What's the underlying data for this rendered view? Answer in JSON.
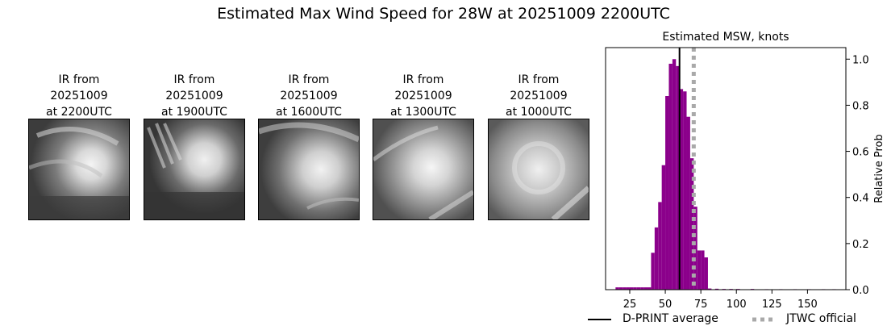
{
  "title": "Estimated Max Wind Speed for 28W at 20251009 2200UTC",
  "ir_panels": [
    {
      "line1": "IR from",
      "line2": "20251009",
      "line3": "at 2200UTC"
    },
    {
      "line1": "IR from",
      "line2": "20251009",
      "line3": "at 1900UTC"
    },
    {
      "line1": "IR from",
      "line2": "20251009",
      "line3": "at 1600UTC"
    },
    {
      "line1": "IR from",
      "line2": "20251009",
      "line3": "at 1300UTC"
    },
    {
      "line1": "IR from",
      "line2": "20251009",
      "line3": "at 1000UTC"
    }
  ],
  "chart_data": {
    "type": "bar",
    "title": "Estimated MSW, knots",
    "xlabel": "",
    "ylabel": "Relative Prob",
    "xlim": [
      8,
      177
    ],
    "ylim": [
      0,
      1.05
    ],
    "xticks": [
      25,
      50,
      75,
      100,
      125,
      150
    ],
    "yticks": [
      0.0,
      0.2,
      0.4,
      0.6,
      0.8,
      1.0
    ],
    "ytick_labels": [
      "0.0",
      "0.2",
      "0.4",
      "0.6",
      "0.8",
      "1.0"
    ],
    "bin_width": 2.5,
    "bar_color": "#8b008b",
    "bins": [
      {
        "x": 15,
        "y": 0.01
      },
      {
        "x": 17.5,
        "y": 0.01
      },
      {
        "x": 20,
        "y": 0.01
      },
      {
        "x": 22.5,
        "y": 0.01
      },
      {
        "x": 25,
        "y": 0.01
      },
      {
        "x": 27.5,
        "y": 0.01
      },
      {
        "x": 30,
        "y": 0.01
      },
      {
        "x": 32.5,
        "y": 0.01
      },
      {
        "x": 35,
        "y": 0.01
      },
      {
        "x": 37.5,
        "y": 0.01
      },
      {
        "x": 40,
        "y": 0.16
      },
      {
        "x": 42.5,
        "y": 0.27
      },
      {
        "x": 45,
        "y": 0.38
      },
      {
        "x": 47.5,
        "y": 0.54
      },
      {
        "x": 50,
        "y": 0.84
      },
      {
        "x": 52.5,
        "y": 0.98
      },
      {
        "x": 55,
        "y": 1.0
      },
      {
        "x": 57.5,
        "y": 0.97
      },
      {
        "x": 60,
        "y": 0.87
      },
      {
        "x": 62.5,
        "y": 0.86
      },
      {
        "x": 65,
        "y": 0.75
      },
      {
        "x": 67.5,
        "y": 0.57
      },
      {
        "x": 70,
        "y": 0.36
      },
      {
        "x": 72.5,
        "y": 0.17
      },
      {
        "x": 75,
        "y": 0.17
      },
      {
        "x": 77.5,
        "y": 0.14
      },
      {
        "x": 80,
        "y": 0.005
      },
      {
        "x": 85,
        "y": 0.004
      },
      {
        "x": 90,
        "y": 0.003
      },
      {
        "x": 95,
        "y": 0.003
      },
      {
        "x": 100,
        "y": 0.003
      },
      {
        "x": 110,
        "y": 0.003
      },
      {
        "x": 120,
        "y": 0.002
      },
      {
        "x": 130,
        "y": 0.002
      },
      {
        "x": 140,
        "y": 0.002
      },
      {
        "x": 150,
        "y": 0.002
      },
      {
        "x": 160,
        "y": 0.002
      },
      {
        "x": 167.5,
        "y": 0.002
      }
    ],
    "dprint_average": 60,
    "jtwc_official": 70,
    "series": [
      {
        "name": "D-PRINT average",
        "color": "#000000",
        "style": "solid"
      },
      {
        "name": "JTWC official",
        "color": "#a9a9a9",
        "style": "dotted"
      }
    ],
    "legend_position": "bottom-right"
  }
}
